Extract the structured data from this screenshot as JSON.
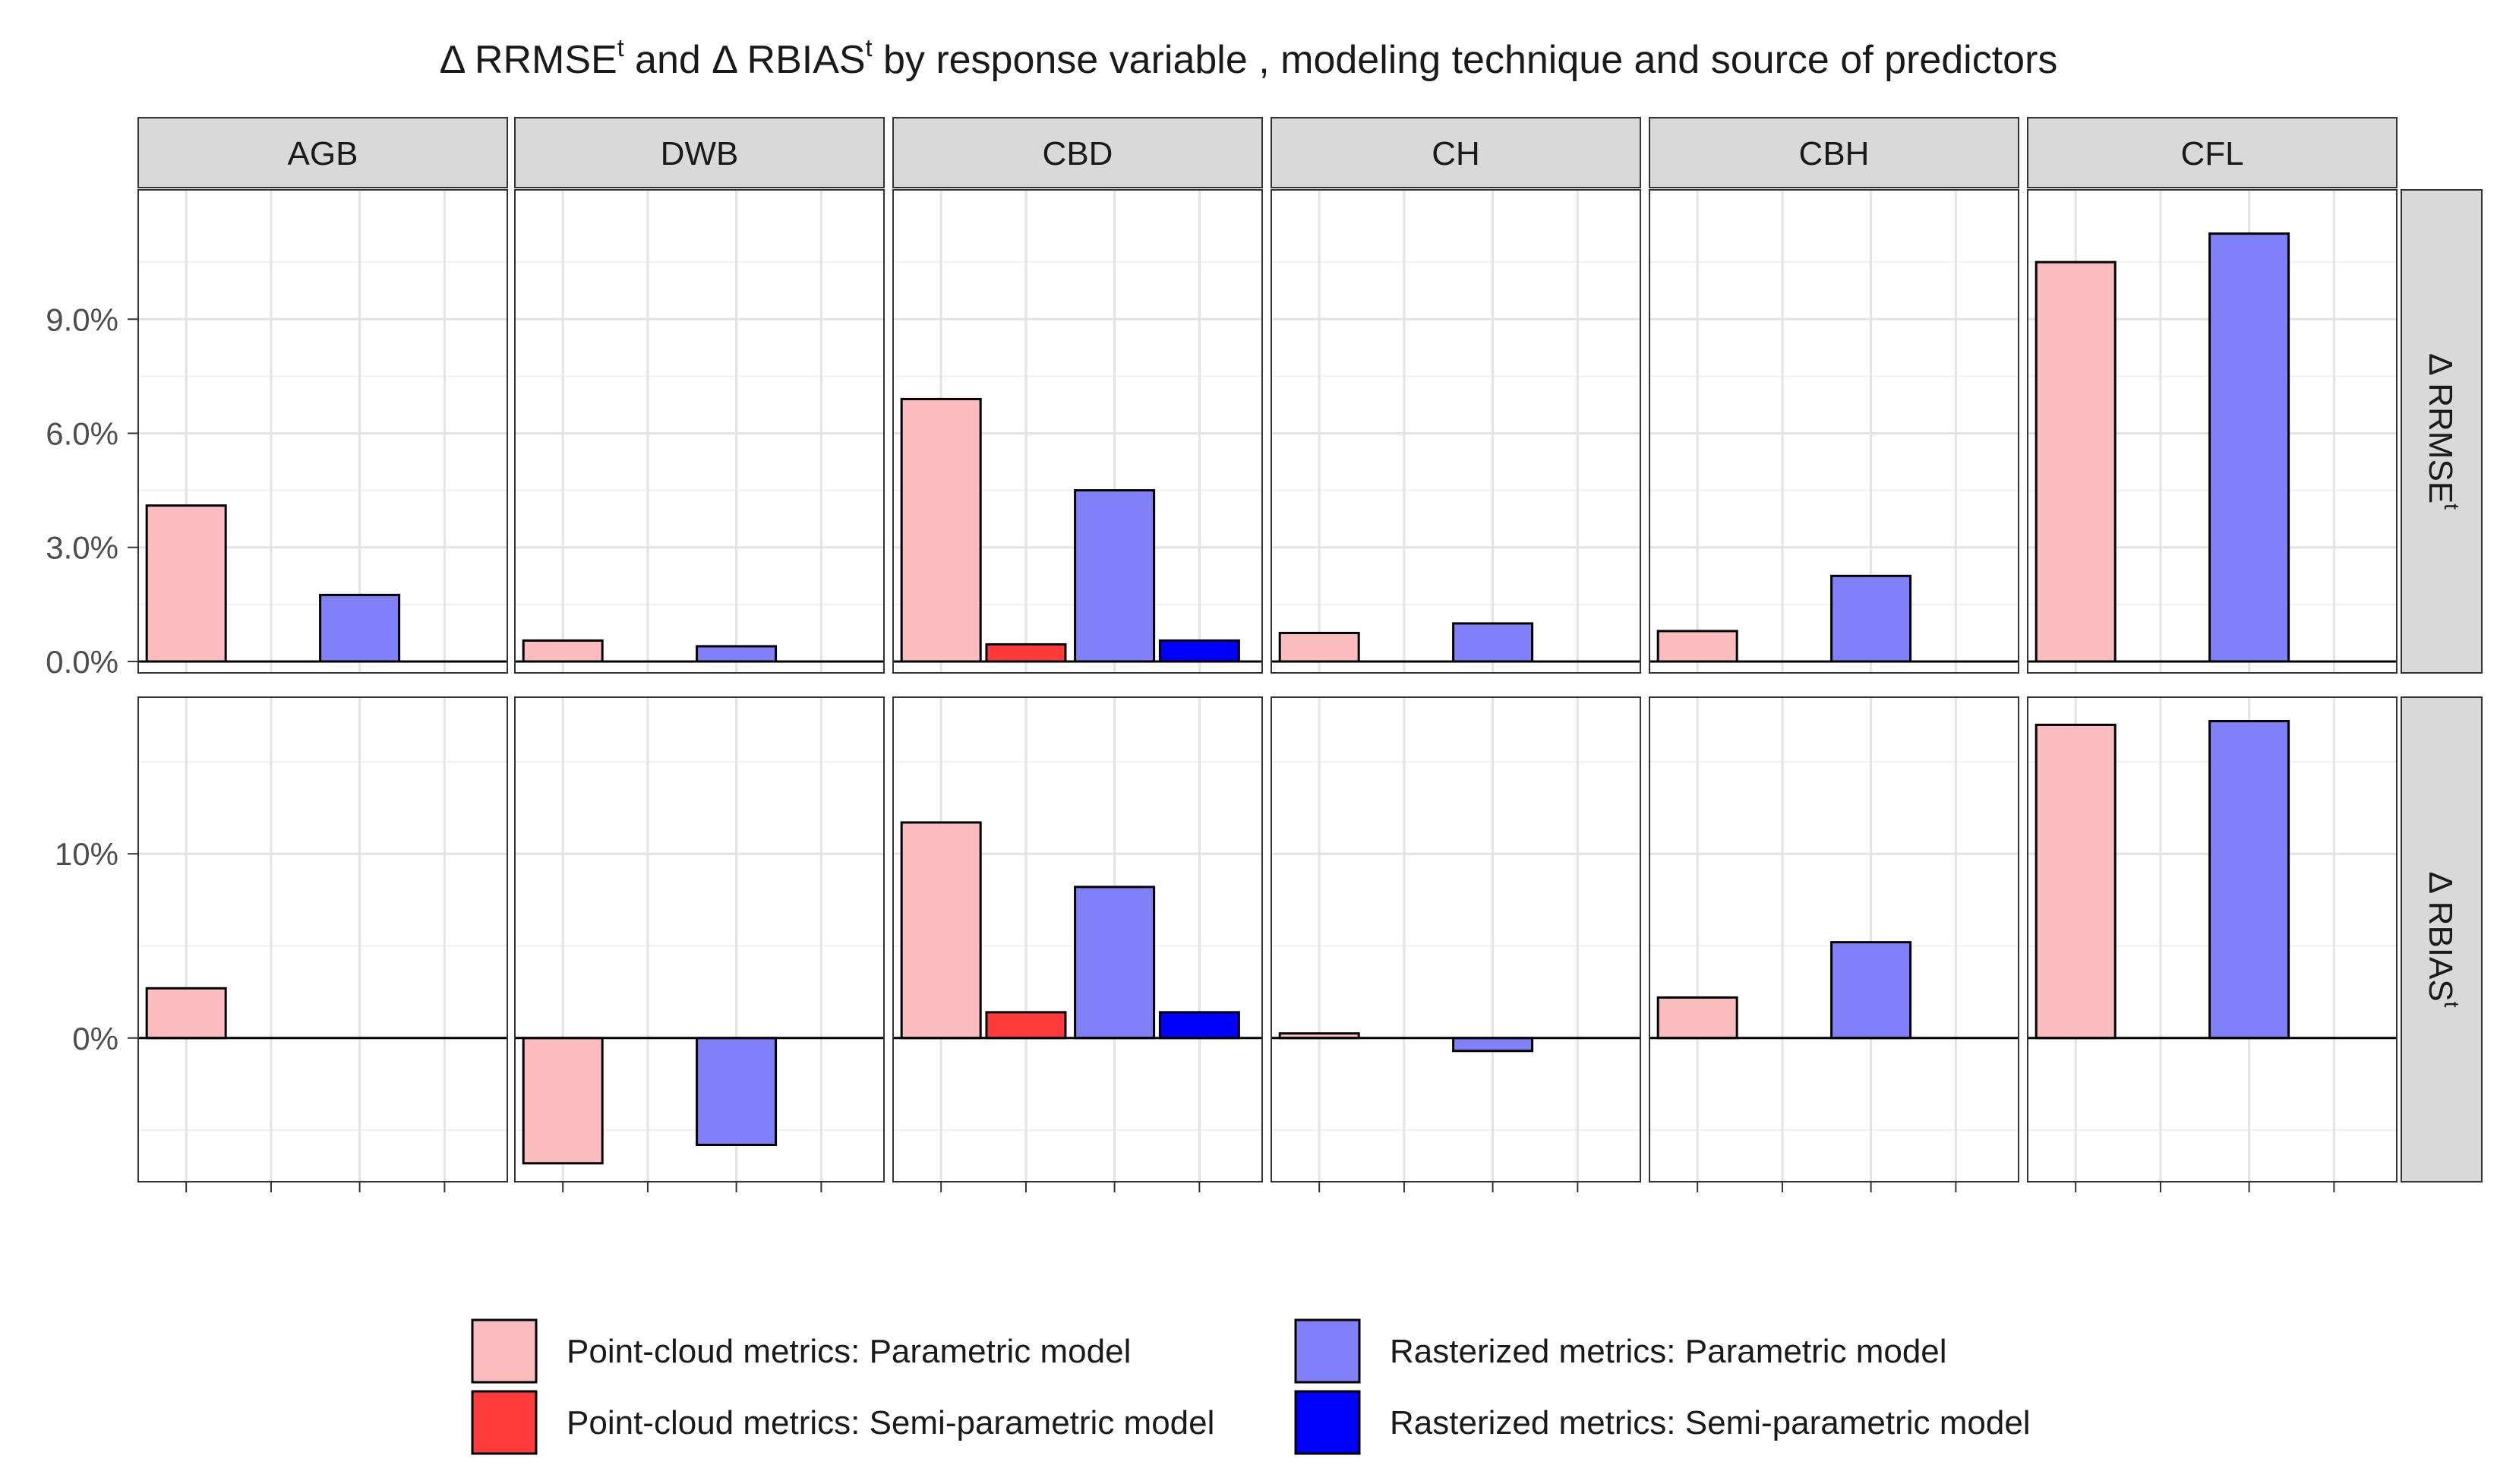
{
  "chart_data": {
    "type": "bar",
    "layout": "facet_grid",
    "title": {
      "parts": [
        {
          "text": "Δ RRMSE"
        },
        {
          "text": "t",
          "sup": true
        },
        {
          "text": " and Δ RBIAS"
        },
        {
          "text": "t",
          "sup": true
        },
        {
          "text": " by response variable , modeling technique and source of predictors"
        }
      ]
    },
    "columns": [
      "AGB",
      "DWB",
      "CBD",
      "CH",
      "CBH",
      "CFL"
    ],
    "series": [
      {
        "name": "Point-cloud metrics: Parametric model",
        "color": "#fbbcbd"
      },
      {
        "name": "Point-cloud metrics: Semi-parametric model",
        "color": "#ff3a3a"
      },
      {
        "name": "Rasterized metrics: Parametric model",
        "color": "#8080f9"
      },
      {
        "name": "Rasterized metrics: Semi-parametric model",
        "color": "#0000ff"
      }
    ],
    "rows": [
      {
        "label": "Δ RRMSE",
        "label_sup": "t",
        "ylim": [
          -0.3,
          12.4
        ],
        "ticks": [
          0,
          3,
          6,
          9
        ],
        "tick_labels": [
          "0.0%",
          "3.0%",
          "6.0%",
          "9.0%"
        ],
        "minor_ticks": [
          1.5,
          4.5,
          7.5,
          10.5
        ],
        "values": {
          "AGB": [
            4.1,
            null,
            1.75,
            null
          ],
          "DWB": [
            0.55,
            null,
            0.4,
            null
          ],
          "CBD": [
            6.9,
            0.45,
            4.5,
            0.55
          ],
          "CH": [
            0.75,
            null,
            1.0,
            null
          ],
          "CBH": [
            0.8,
            null,
            2.25,
            null
          ],
          "CFL": [
            10.5,
            null,
            11.25,
            null
          ]
        }
      },
      {
        "label": "Δ RBIAS",
        "label_sup": "t",
        "ylim": [
          -7.8,
          18.5
        ],
        "ticks": [
          0,
          10
        ],
        "tick_labels": [
          "0%",
          "10%"
        ],
        "minor_ticks": [
          -5,
          5,
          15
        ],
        "values": {
          "AGB": [
            2.7,
            null,
            null,
            null
          ],
          "DWB": [
            -6.8,
            null,
            -5.8,
            null
          ],
          "CBD": [
            11.7,
            1.4,
            8.2,
            1.4
          ],
          "CH": [
            0.25,
            null,
            -0.7,
            null
          ],
          "CBH": [
            2.2,
            null,
            5.2,
            null
          ],
          "CFL": [
            17.0,
            null,
            17.2,
            null
          ]
        }
      }
    ],
    "xlabel": "",
    "ylabel": ""
  }
}
